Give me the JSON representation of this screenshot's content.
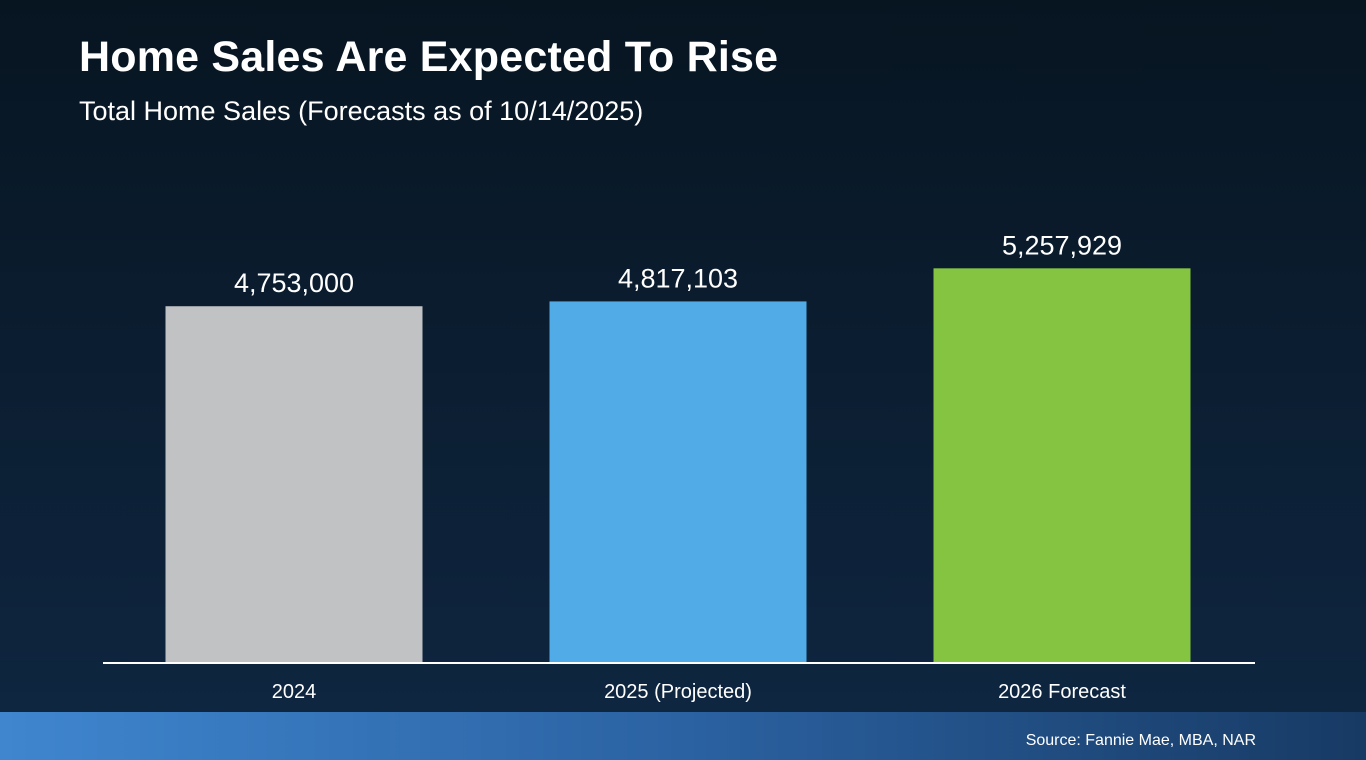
{
  "chart_data": {
    "type": "bar",
    "title": "Home Sales Are Expected To Rise",
    "subtitle": "Total Home Sales (Forecasts as of 10/14/2025)",
    "categories": [
      "2024",
      "2025 (Projected)",
      "2026 Forecast"
    ],
    "values": [
      4753000,
      4817103,
      5257929
    ],
    "value_labels": [
      "4,753,000",
      "4,817,103",
      "5,257,929"
    ],
    "colors": [
      "#c1c2c4",
      "#50abe7",
      "#84c441"
    ],
    "xlabel": "",
    "ylabel": "",
    "ylim": [
      0,
      5995000
    ],
    "grid": false,
    "source": "Source: Fannie Mae, MBA, NAR"
  }
}
